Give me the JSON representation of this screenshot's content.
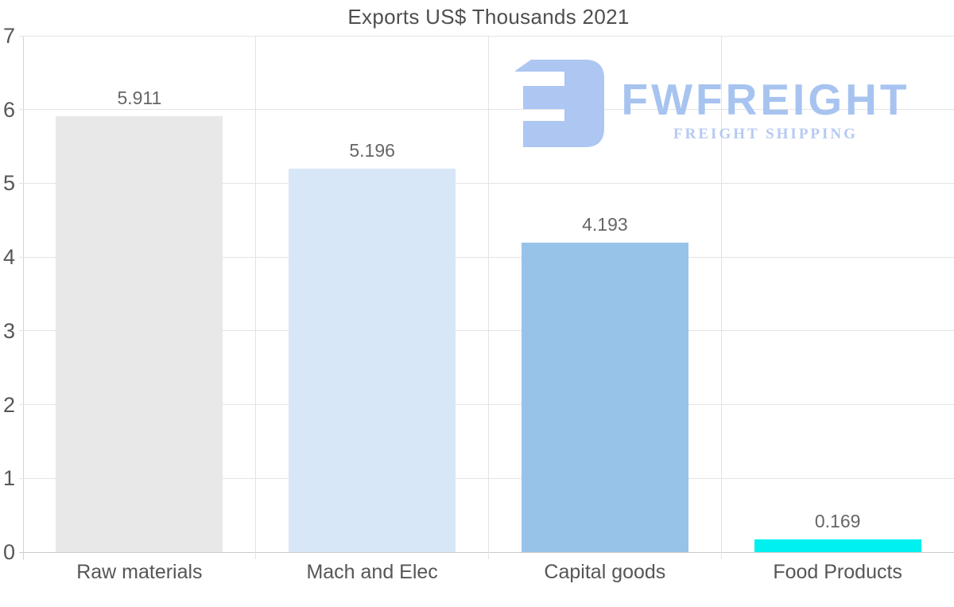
{
  "chart_data": {
    "type": "bar",
    "title": "Exports US$ Thousands 2021",
    "categories": [
      "Raw materials",
      "Mach and Elec",
      "Capital goods",
      "Food Products"
    ],
    "values": [
      5.911,
      5.196,
      4.193,
      0.169
    ],
    "value_labels": [
      "5.911",
      "5.196",
      "4.193",
      "0.169"
    ],
    "bar_colors": [
      "#e8e8e8",
      "#d7e7f8",
      "#98c3e8",
      "#00efef"
    ],
    "xlabel": "",
    "ylabel": "",
    "ylim": [
      0,
      7
    ],
    "yticks": [
      "0",
      "1",
      "2",
      "3",
      "4",
      "5",
      "6",
      "7"
    ],
    "grid": "on",
    "legend": "none"
  },
  "logo": {
    "icon_name": "fwfreight-monogram-icon",
    "brand": "FWFREIGHT",
    "tagline": "FREIGHT SHIPPING",
    "colors": {
      "icon": "#adc6f2",
      "brand_text": "#a7c3f0",
      "tagline_text": "#b5c9f2"
    }
  },
  "styles": {
    "background": "#ffffff",
    "title_color": "#4f4f4f",
    "tick_label_color": "#565656",
    "value_label_color": "#666666",
    "grid_color": "#e4e4e4",
    "axis_line_color": "#d6d6d6"
  }
}
